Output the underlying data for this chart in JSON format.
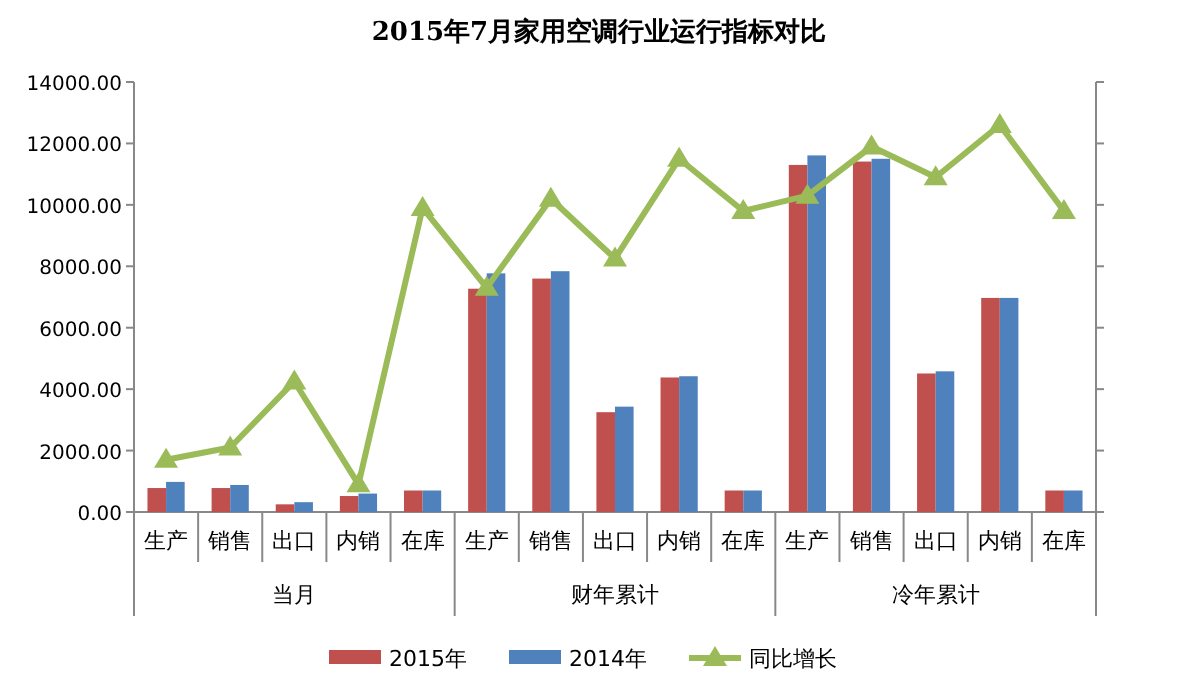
{
  "chart_data": {
    "type": "bar",
    "title": "2015年7月家用空调行业运行指标对比",
    "categories": [
      "生产",
      "销售",
      "出口",
      "内销",
      "在库",
      "生产",
      "销售",
      "出口",
      "内销",
      "在库",
      "生产",
      "销售",
      "出口",
      "内销",
      "在库"
    ],
    "annotations": [
      "当月",
      "财年累计",
      "冷年累计"
    ],
    "series": [
      {
        "name": "2015年",
        "color": "#c0504d",
        "values": [
          780,
          780,
          250,
          520,
          700,
          7270,
          7600,
          3250,
          4380,
          700,
          11300,
          11410,
          4510,
          6970,
          700
        ]
      },
      {
        "name": "2014年",
        "color": "#4f81bd",
        "values": [
          980,
          880,
          320,
          600,
          700,
          7770,
          7840,
          3430,
          4420,
          700,
          11610,
          11500,
          4580,
          6970,
          700
        ]
      },
      {
        "name": "同比增长",
        "type": "line",
        "color": "#9bbb59",
        "marker": "triangle",
        "values": [
          1700,
          2100,
          4250,
          900,
          9900,
          7300,
          10200,
          8250,
          11500,
          9800,
          10300,
          11900,
          10900,
          12600,
          9800
        ]
      }
    ],
    "ylim": [
      0,
      14000
    ],
    "yticks": [
      {
        "value": 0,
        "label": "0.00"
      },
      {
        "value": 2000,
        "label": "2000.00"
      },
      {
        "value": 4000,
        "label": "4000.00"
      },
      {
        "value": 6000,
        "label": "6000.00"
      },
      {
        "value": 8000,
        "label": "8000.00"
      },
      {
        "value": 10000,
        "label": "10000.00"
      },
      {
        "value": 12000,
        "label": "12000.00"
      },
      {
        "value": 14000,
        "label": "14000.00"
      }
    ],
    "grid": false,
    "legend": "bottom"
  }
}
